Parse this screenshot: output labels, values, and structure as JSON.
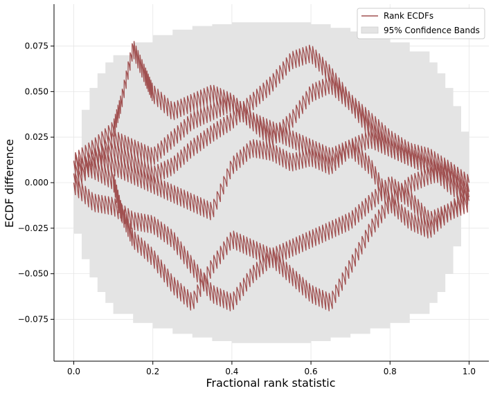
{
  "chart_data": {
    "type": "line",
    "title": "",
    "xlabel": "Fractional rank statistic",
    "ylabel": "ECDF difference",
    "xlim": [
      -0.05,
      1.05
    ],
    "ylim": [
      -0.098,
      0.098
    ],
    "grid": true,
    "legend_position": "top-right",
    "x_ticks": [
      {
        "value": 0.0,
        "label": "0.0"
      },
      {
        "value": 0.2,
        "label": "0.2"
      },
      {
        "value": 0.4,
        "label": "0.4"
      },
      {
        "value": 0.6,
        "label": "0.6"
      },
      {
        "value": 0.8,
        "label": "0.8"
      },
      {
        "value": 1.0,
        "label": "1.0"
      }
    ],
    "y_ticks": [
      {
        "value": -0.075,
        "label": "−0.075"
      },
      {
        "value": -0.05,
        "label": "−0.050"
      },
      {
        "value": -0.025,
        "label": "−0.025"
      },
      {
        "value": 0.0,
        "label": "0.000"
      },
      {
        "value": 0.025,
        "label": "0.025"
      },
      {
        "value": 0.05,
        "label": "0.050"
      },
      {
        "value": 0.075,
        "label": "0.075"
      }
    ],
    "legend": [
      {
        "label": "Rank ECDFs",
        "kind": "line",
        "color": "#a05050"
      },
      {
        "label": "95% Confidence Bands",
        "kind": "patch",
        "color": "#e4e4e4"
      }
    ],
    "band": {
      "x": [
        0.0,
        0.02,
        0.04,
        0.06,
        0.08,
        0.1,
        0.15,
        0.2,
        0.25,
        0.3,
        0.35,
        0.4,
        0.45,
        0.5,
        0.55,
        0.6,
        0.65,
        0.7,
        0.75,
        0.8,
        0.85,
        0.9,
        0.92,
        0.94,
        0.96,
        0.98,
        1.0
      ],
      "upper": [
        0.012,
        0.04,
        0.052,
        0.06,
        0.066,
        0.07,
        0.077,
        0.081,
        0.084,
        0.086,
        0.087,
        0.088,
        0.088,
        0.088,
        0.088,
        0.087,
        0.085,
        0.083,
        0.08,
        0.077,
        0.072,
        0.066,
        0.06,
        0.052,
        0.042,
        0.028,
        0.006
      ],
      "lower": [
        -0.006,
        -0.028,
        -0.042,
        -0.052,
        -0.06,
        -0.066,
        -0.072,
        -0.077,
        -0.08,
        -0.083,
        -0.085,
        -0.087,
        -0.088,
        -0.088,
        -0.088,
        -0.088,
        -0.087,
        -0.085,
        -0.083,
        -0.08,
        -0.077,
        -0.072,
        -0.066,
        -0.06,
        -0.05,
        -0.035,
        -0.012
      ]
    },
    "series_color": "#a05050",
    "series": [
      {
        "x": [
          0.0,
          0.05,
          0.1,
          0.15,
          0.2,
          0.25,
          0.3,
          0.35,
          0.4,
          0.45,
          0.5,
          0.55,
          0.6,
          0.65,
          0.7,
          0.75,
          0.8,
          0.85,
          0.9,
          0.95,
          1.0
        ],
        "y": [
          0.005,
          0.015,
          0.018,
          0.012,
          0.005,
          0.01,
          0.02,
          0.028,
          0.035,
          0.045,
          0.055,
          0.068,
          0.072,
          0.06,
          0.045,
          0.035,
          0.025,
          0.018,
          0.015,
          0.008,
          0.0
        ]
      },
      {
        "x": [
          0.0,
          0.05,
          0.1,
          0.12,
          0.15,
          0.18,
          0.2,
          0.25,
          0.3,
          0.35,
          0.4,
          0.45,
          0.5,
          0.55,
          0.6,
          0.65,
          0.7,
          0.75,
          0.8,
          0.85,
          0.9,
          0.95,
          1.0
        ],
        "y": [
          0.012,
          0.02,
          0.03,
          0.045,
          0.075,
          0.06,
          0.05,
          0.04,
          0.045,
          0.05,
          0.045,
          0.035,
          0.025,
          0.035,
          0.05,
          0.055,
          0.045,
          0.03,
          0.02,
          0.015,
          0.01,
          0.005,
          -0.005
        ]
      },
      {
        "x": [
          0.0,
          0.05,
          0.1,
          0.15,
          0.2,
          0.25,
          0.3,
          0.35,
          0.4,
          0.45,
          0.5,
          0.55,
          0.6,
          0.65,
          0.7,
          0.75,
          0.8,
          0.85,
          0.9,
          0.95,
          1.0
        ],
        "y": [
          0.0,
          -0.01,
          -0.012,
          -0.02,
          -0.022,
          -0.03,
          -0.045,
          -0.06,
          -0.065,
          -0.05,
          -0.04,
          -0.035,
          -0.03,
          -0.025,
          -0.02,
          -0.01,
          0.0,
          -0.008,
          -0.02,
          -0.015,
          -0.005
        ]
      },
      {
        "x": [
          0.0,
          0.05,
          0.1,
          0.12,
          0.15,
          0.2,
          0.25,
          0.3,
          0.35,
          0.4,
          0.45,
          0.5,
          0.55,
          0.6,
          0.65,
          0.7,
          0.75,
          0.8,
          0.85,
          0.9,
          0.95,
          1.0
        ],
        "y": [
          0.012,
          0.008,
          0.002,
          -0.015,
          -0.03,
          -0.04,
          -0.055,
          -0.065,
          -0.045,
          -0.03,
          -0.035,
          -0.04,
          -0.05,
          -0.06,
          -0.065,
          -0.045,
          -0.025,
          -0.01,
          0.0,
          0.005,
          0.008,
          0.0
        ]
      },
      {
        "x": [
          0.0,
          0.05,
          0.1,
          0.15,
          0.2,
          0.25,
          0.3,
          0.35,
          0.4,
          0.45,
          0.5,
          0.55,
          0.6,
          0.65,
          0.7,
          0.75,
          0.8,
          0.85,
          0.9,
          0.95,
          1.0
        ],
        "y": [
          0.005,
          0.015,
          0.01,
          0.005,
          0.0,
          -0.005,
          -0.01,
          -0.015,
          0.01,
          0.02,
          0.018,
          0.012,
          0.015,
          0.01,
          0.02,
          0.01,
          -0.01,
          -0.02,
          -0.025,
          -0.015,
          -0.01
        ]
      },
      {
        "x": [
          0.0,
          0.05,
          0.1,
          0.15,
          0.2,
          0.25,
          0.3,
          0.35,
          0.4,
          0.45,
          0.5,
          0.55,
          0.6,
          0.65,
          0.7,
          0.75,
          0.8,
          0.85,
          0.9,
          0.95,
          1.0
        ],
        "y": [
          0.0,
          0.012,
          0.025,
          0.02,
          0.015,
          0.025,
          0.035,
          0.04,
          0.045,
          0.035,
          0.03,
          0.025,
          0.02,
          0.015,
          0.02,
          0.025,
          0.02,
          0.015,
          0.01,
          0.0,
          -0.008
        ]
      }
    ]
  }
}
